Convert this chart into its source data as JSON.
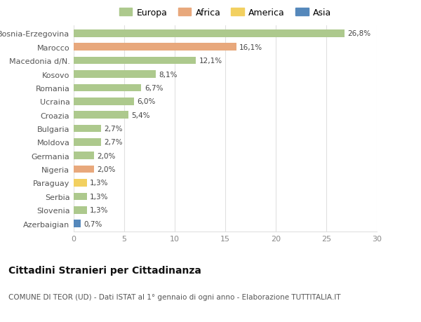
{
  "countries": [
    "Bosnia-Erzegovina",
    "Marocco",
    "Macedonia d/N.",
    "Kosovo",
    "Romania",
    "Ucraina",
    "Croazia",
    "Bulgaria",
    "Moldova",
    "Germania",
    "Nigeria",
    "Paraguay",
    "Serbia",
    "Slovenia",
    "Azerbaigian"
  ],
  "values": [
    26.8,
    16.1,
    12.1,
    8.1,
    6.7,
    6.0,
    5.4,
    2.7,
    2.7,
    2.0,
    2.0,
    1.3,
    1.3,
    1.3,
    0.7
  ],
  "labels": [
    "26,8%",
    "16,1%",
    "12,1%",
    "8,1%",
    "6,7%",
    "6,0%",
    "5,4%",
    "2,7%",
    "2,7%",
    "2,0%",
    "2,0%",
    "1,3%",
    "1,3%",
    "1,3%",
    "0,7%"
  ],
  "continent": [
    "Europa",
    "Africa",
    "Europa",
    "Europa",
    "Europa",
    "Europa",
    "Europa",
    "Europa",
    "Europa",
    "Europa",
    "Africa",
    "America",
    "Europa",
    "Europa",
    "Asia"
  ],
  "colors": {
    "Europa": "#adc98d",
    "Africa": "#e8a87c",
    "America": "#f2d060",
    "Asia": "#5588bb"
  },
  "legend_order": [
    "Europa",
    "Africa",
    "America",
    "Asia"
  ],
  "title": "Cittadini Stranieri per Cittadinanza",
  "subtitle": "COMUNE DI TEOR (UD) - Dati ISTAT al 1° gennaio di ogni anno - Elaborazione TUTTITALIA.IT",
  "xlim": [
    0,
    30
  ],
  "xticks": [
    0,
    5,
    10,
    15,
    20,
    25,
    30
  ],
  "background_color": "#ffffff",
  "grid_color": "#e0e0e0",
  "bar_height": 0.55
}
